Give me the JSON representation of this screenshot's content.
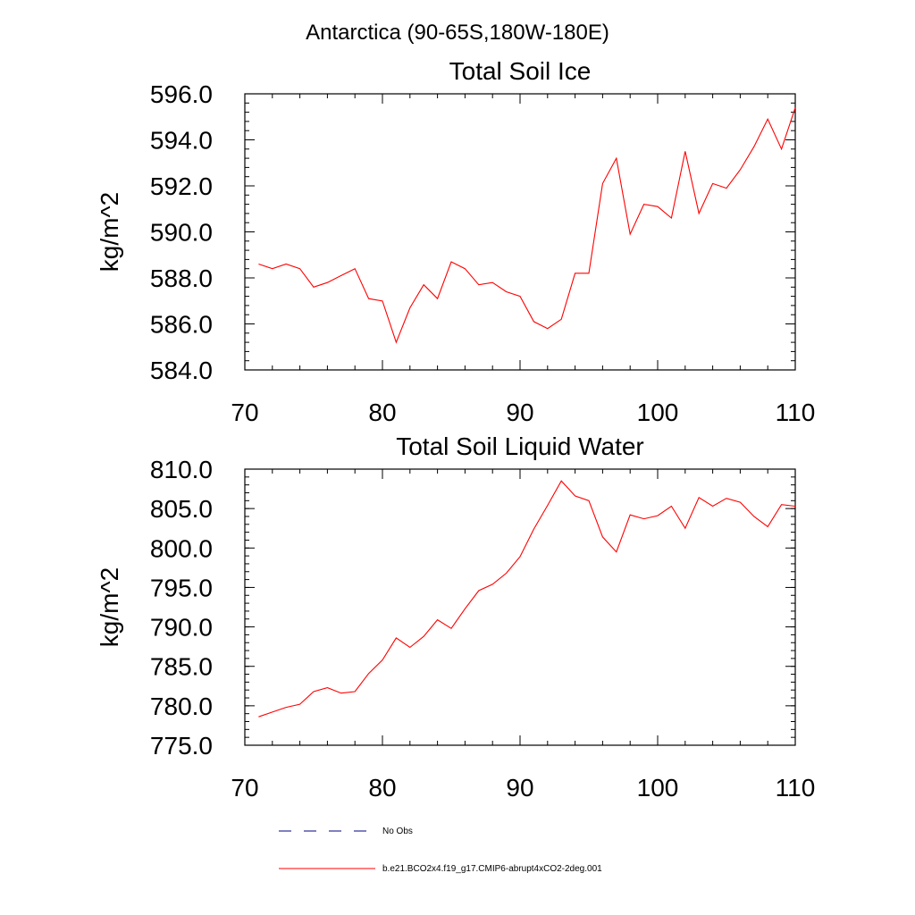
{
  "figure": {
    "title": "Antarctica (90-65S,180W-180E)"
  },
  "legend": {
    "entries": [
      {
        "label": "No Obs",
        "color": "#000080",
        "dash": true
      },
      {
        "label": "b.e21.BCO2x4.f19_g17.CMIP6-abrupt4xCO2-2deg.001",
        "color": "#ff0000",
        "dash": false
      }
    ]
  },
  "chart_data": [
    {
      "type": "line",
      "title": "Total Soil Ice",
      "ylabel": "kg/m^2",
      "xlabel": "",
      "xlim": [
        70,
        110
      ],
      "ylim": [
        584.0,
        596.0
      ],
      "xticks": [
        70,
        80,
        90,
        100,
        110
      ],
      "yticks": [
        "584.0",
        "586.0",
        "588.0",
        "590.0",
        "592.0",
        "594.0",
        "596.0"
      ],
      "series": [
        {
          "name": "b.e21.BCO2x4.f19_g17.CMIP6-abrupt4xCO2-2deg.001",
          "color": "#ff0000",
          "x": [
            71,
            72,
            73,
            74,
            75,
            76,
            77,
            78,
            79,
            80,
            81,
            82,
            83,
            84,
            85,
            86,
            87,
            88,
            89,
            90,
            91,
            92,
            93,
            94,
            95,
            96,
            97,
            98,
            99,
            100,
            101,
            102,
            103,
            104,
            105,
            106,
            107,
            108,
            109,
            110
          ],
          "y": [
            588.6,
            588.4,
            588.6,
            588.4,
            587.6,
            587.8,
            588.1,
            588.4,
            587.1,
            587.0,
            585.2,
            586.7,
            587.7,
            587.1,
            588.7,
            588.4,
            587.7,
            587.8,
            587.4,
            587.2,
            586.1,
            585.8,
            586.2,
            588.2,
            588.2,
            592.1,
            593.2,
            589.9,
            591.2,
            591.1,
            590.6,
            593.5,
            590.8,
            592.1,
            591.9,
            592.7,
            593.7,
            594.9,
            593.6,
            595.4
          ]
        }
      ]
    },
    {
      "type": "line",
      "title": "Total Soil Liquid Water",
      "ylabel": "kg/m^2",
      "xlabel": "",
      "xlim": [
        70,
        110
      ],
      "ylim": [
        775.0,
        810.0
      ],
      "xticks": [
        70,
        80,
        90,
        100,
        110
      ],
      "yticks": [
        "775.0",
        "780.0",
        "785.0",
        "790.0",
        "795.0",
        "800.0",
        "805.0",
        "810.0"
      ],
      "series": [
        {
          "name": "b.e21.BCO2x4.f19_g17.CMIP6-abrupt4xCO2-2deg.001",
          "color": "#ff0000",
          "x": [
            71,
            72,
            73,
            74,
            75,
            76,
            77,
            78,
            79,
            80,
            81,
            82,
            83,
            84,
            85,
            86,
            87,
            88,
            89,
            90,
            91,
            92,
            93,
            94,
            95,
            96,
            97,
            98,
            99,
            100,
            101,
            102,
            103,
            104,
            105,
            106,
            107,
            108,
            109,
            110
          ],
          "y": [
            778.6,
            779.2,
            779.8,
            780.2,
            781.8,
            782.3,
            781.6,
            781.8,
            784.1,
            785.8,
            788.6,
            787.4,
            788.8,
            790.9,
            789.8,
            792.3,
            794.6,
            795.4,
            796.8,
            798.9,
            802.4,
            805.4,
            808.5,
            806.6,
            806.0,
            801.4,
            799.5,
            804.2,
            803.7,
            804.1,
            805.3,
            802.5,
            806.4,
            805.3,
            806.3,
            805.8,
            804.0,
            802.7,
            805.5,
            805.3
          ]
        }
      ]
    }
  ]
}
